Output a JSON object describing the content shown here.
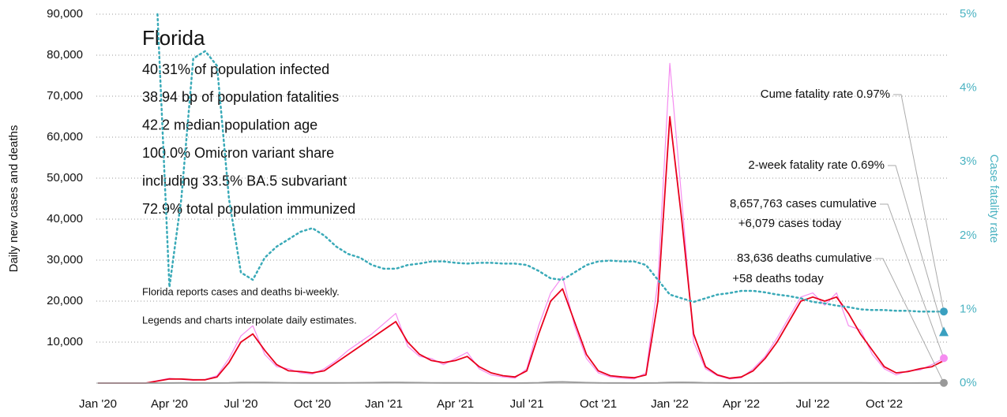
{
  "chart_data": {
    "type": "line",
    "title": "Florida",
    "stats": [
      "40.31% of population infected",
      "38.94 bp of population fatalities",
      "42.2 median population age",
      "100.0% Omicron variant share",
      "including 33.5% BA.5 subvariant",
      "72.9% total population immunized"
    ],
    "notes": [
      "Florida reports cases and deaths bi-weekly.",
      "Legends and charts interpolate daily estimates."
    ],
    "ylabel": "Daily new cases and deaths",
    "y2label": "Case fatality rate",
    "categories": [
      "Jan '20",
      null,
      null,
      null,
      null,
      null,
      "Apr '20",
      null,
      null,
      null,
      null,
      null,
      "Jul '20",
      null,
      null,
      null,
      null,
      null,
      "Oct '20",
      null,
      null,
      null,
      null,
      null,
      "Jan '21",
      null,
      null,
      null,
      null,
      null,
      "Apr '21",
      null,
      null,
      null,
      null,
      null,
      "Jul '21",
      null,
      null,
      null,
      null,
      null,
      "Oct '21",
      null,
      null,
      null,
      null,
      null,
      "Jan '22",
      null,
      null,
      null,
      null,
      null,
      "Apr '22",
      null,
      null,
      null,
      null,
      null,
      "Jul '22",
      null,
      null,
      null,
      null,
      null,
      "Oct '22",
      null,
      null,
      null,
      null,
      null
    ],
    "series": [
      {
        "name": "Daily cases",
        "color": "#f58cf0",
        "width": 1.2,
        "values": [
          0,
          0,
          0,
          0,
          0,
          600,
          1200,
          900,
          700,
          900,
          1800,
          6000,
          11500,
          14000,
          7000,
          4000,
          3500,
          2500,
          2200,
          3500,
          5500,
          8000,
          10000,
          12000,
          14500,
          17000,
          9000,
          6500,
          6000,
          4500,
          6000,
          7500,
          3500,
          2000,
          1500,
          1200,
          3500,
          14000,
          22000,
          26000,
          14000,
          6000,
          2500,
          1500,
          1200,
          1000,
          2500,
          25000,
          78000,
          45000,
          10000,
          3500,
          1800,
          1000,
          1300,
          3500,
          6500,
          11000,
          16000,
          21000,
          22000,
          19000,
          22000,
          14000,
          13000,
          7000,
          3500,
          2000,
          3000,
          3200,
          4500,
          6079
        ]
      },
      {
        "name": "Smoothed cases",
        "color": "#e8001c",
        "width": 1.8,
        "values": [
          0,
          0,
          0,
          0,
          0,
          500,
          1000,
          1000,
          800,
          800,
          1500,
          5000,
          10000,
          12000,
          8000,
          4500,
          3000,
          2800,
          2500,
          3000,
          5000,
          7000,
          9000,
          11000,
          13000,
          15000,
          10000,
          7000,
          5500,
          5000,
          5500,
          6500,
          4000,
          2500,
          1800,
          1500,
          3000,
          12000,
          20000,
          23000,
          15000,
          7000,
          3000,
          1800,
          1500,
          1300,
          2000,
          20000,
          65000,
          40000,
          12000,
          4000,
          2000,
          1200,
          1500,
          3000,
          6000,
          10000,
          15000,
          20000,
          21000,
          20000,
          21000,
          17000,
          12000,
          8000,
          4000,
          2500,
          2800,
          3500,
          4000,
          5500
        ]
      },
      {
        "name": "Daily deaths",
        "color": "#999999",
        "width": 1.8,
        "values": [
          0,
          0,
          0,
          0,
          0,
          10,
          40,
          50,
          40,
          40,
          40,
          60,
          150,
          180,
          150,
          110,
          80,
          60,
          50,
          50,
          60,
          80,
          100,
          120,
          150,
          170,
          140,
          110,
          80,
          60,
          50,
          50,
          40,
          30,
          25,
          20,
          30,
          100,
          250,
          300,
          220,
          120,
          60,
          40,
          30,
          25,
          30,
          60,
          150,
          200,
          150,
          80,
          50,
          30,
          20,
          20,
          30,
          40,
          50,
          60,
          60,
          60,
          60,
          55,
          50,
          40,
          30,
          25,
          25,
          30,
          40,
          58
        ]
      },
      {
        "name": "Case fatality rate",
        "color": "#3aaab8",
        "width": 2.5,
        "dash": "2 4",
        "axis": "y2",
        "values": [
          null,
          null,
          null,
          null,
          null,
          5,
          1.3,
          2.5,
          4.4,
          4.5,
          4.3,
          2.5,
          1.5,
          1.4,
          1.7,
          1.85,
          1.95,
          2.05,
          2.1,
          2.0,
          1.85,
          1.75,
          1.7,
          1.6,
          1.55,
          1.55,
          1.6,
          1.62,
          1.65,
          1.65,
          1.63,
          1.62,
          1.63,
          1.63,
          1.62,
          1.62,
          1.6,
          1.52,
          1.42,
          1.4,
          1.5,
          1.6,
          1.65,
          1.66,
          1.65,
          1.65,
          1.6,
          1.4,
          1.2,
          1.15,
          1.1,
          1.15,
          1.2,
          1.22,
          1.25,
          1.25,
          1.23,
          1.2,
          1.18,
          1.15,
          1.1,
          1.08,
          1.05,
          1.03,
          1.0,
          0.99,
          0.99,
          0.98,
          0.98,
          0.97,
          0.97,
          0.97
        ]
      }
    ],
    "ylim": [
      0,
      90000
    ],
    "yticks": [
      {
        "value": 10000,
        "label": "10,000"
      },
      {
        "value": 20000,
        "label": "20,000"
      },
      {
        "value": 30000,
        "label": "30,000"
      },
      {
        "value": 40000,
        "label": "40,000"
      },
      {
        "value": 50000,
        "label": "50,000"
      },
      {
        "value": 60000,
        "label": "60,000"
      },
      {
        "value": 70000,
        "label": "70,000"
      },
      {
        "value": 80000,
        "label": "80,000"
      },
      {
        "value": 90000,
        "label": "90,000"
      }
    ],
    "y2lim": [
      0,
      5
    ],
    "y2ticks": [
      {
        "value": 0,
        "label": "0%"
      },
      {
        "value": 1,
        "label": "1%"
      },
      {
        "value": 2,
        "label": "2%"
      },
      {
        "value": 3,
        "label": "3%"
      },
      {
        "value": 4,
        "label": "4%"
      },
      {
        "value": 5,
        "label": "5%"
      }
    ],
    "grid": true,
    "annotations": [
      {
        "lines": [
          "Cume fatality rate 0.97%"
        ],
        "value": 0.97,
        "axis": "y2",
        "marker": "circle",
        "color": "#3aa0c0"
      },
      {
        "lines": [
          "2-week fatality rate 0.69%"
        ],
        "value": 0.69,
        "axis": "y2",
        "marker": "triangle",
        "color": "#3aa0c0"
      },
      {
        "lines": [
          "8,657,763 cases cumulative",
          "+6,079 cases today"
        ],
        "value": 6079,
        "marker": "circle",
        "color": "#f58cf0"
      },
      {
        "lines": [
          "83,636 deaths cumulative",
          "+58 deaths today"
        ],
        "value": 58,
        "marker": "circle",
        "color": "#999999"
      }
    ]
  }
}
